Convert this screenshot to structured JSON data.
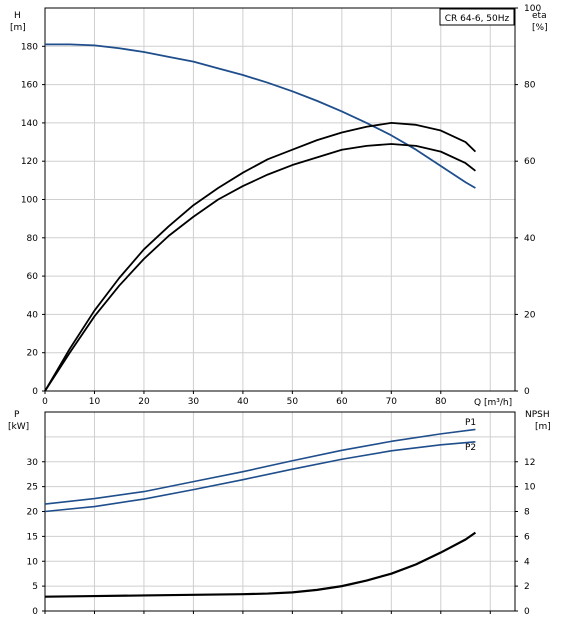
{
  "chart_data": [
    {
      "type": "line",
      "title": "CR 64-6, 50Hz",
      "xlabel": "Q [m³/h]",
      "ylabel_left_unit": "H",
      "ylabel_left_bracket": "[m]",
      "ylabel_right_unit": "eta",
      "ylabel_right_bracket": "[%]",
      "xlim": [
        0,
        95
      ],
      "xticks": [
        "0",
        "10",
        "20",
        "30",
        "40",
        "50",
        "60",
        "70",
        "80"
      ],
      "ylim_left": [
        0,
        200
      ],
      "yticks_left": [
        "0",
        "20",
        "40",
        "60",
        "80",
        "100",
        "120",
        "140",
        "160",
        "180"
      ],
      "ylim_right": [
        0,
        100
      ],
      "yticks_right": [
        "0",
        "20",
        "40",
        "60",
        "80",
        "100"
      ],
      "grid": true,
      "series": [
        {
          "axis": "left",
          "color": "#1f4e8c",
          "x": [
            0,
            5,
            10,
            15,
            20,
            25,
            30,
            35,
            40,
            45,
            50,
            55,
            60,
            65,
            70,
            75,
            80,
            85,
            87
          ],
          "y": [
            181,
            181,
            180.5,
            179,
            177,
            174.5,
            172,
            168.5,
            165,
            161,
            156.5,
            151.5,
            146,
            140,
            133.5,
            126,
            117.5,
            109,
            106
          ]
        },
        {
          "axis": "right",
          "color": "#000000",
          "x": [
            0,
            5,
            10,
            15,
            20,
            25,
            30,
            35,
            40,
            45,
            50,
            55,
            60,
            65,
            70,
            75,
            80,
            85,
            87
          ],
          "y": [
            0,
            11,
            21,
            29.5,
            37,
            43,
            48.5,
            53,
            57,
            60.5,
            63,
            65.5,
            67.5,
            69,
            70,
            69.5,
            68,
            65,
            62.5
          ]
        },
        {
          "axis": "right",
          "color": "#000000",
          "x": [
            0,
            5,
            10,
            15,
            20,
            25,
            30,
            35,
            40,
            45,
            50,
            55,
            60,
            65,
            70,
            75,
            80,
            85,
            87
          ],
          "y": [
            0,
            10,
            19.5,
            27.5,
            34.5,
            40.5,
            45.5,
            50,
            53.5,
            56.5,
            59,
            61,
            63,
            64,
            64.5,
            64,
            62.5,
            59.5,
            57.5
          ]
        }
      ]
    },
    {
      "type": "line",
      "xlim": [
        0,
        95
      ],
      "ylabel_left_unit": "P",
      "ylabel_left_bracket": "[kW]",
      "ylabel_right_unit": "NPSH",
      "ylabel_right_bracket": "[m]",
      "ylim_left": [
        0,
        40
      ],
      "yticks_left": [
        "0",
        "5",
        "10",
        "15",
        "20",
        "25",
        "30"
      ],
      "ylim_right": [
        0,
        16
      ],
      "yticks_right": [
        "0",
        "2",
        "4",
        "6",
        "8",
        "10",
        "12"
      ],
      "grid": true,
      "series": [
        {
          "name": "P1",
          "axis": "left",
          "color": "#1f4e8c",
          "x": [
            0,
            10,
            20,
            30,
            40,
            50,
            60,
            70,
            80,
            87
          ],
          "y": [
            21.5,
            22.6,
            24,
            26,
            28,
            30.2,
            32.3,
            34.1,
            35.6,
            36.5
          ]
        },
        {
          "name": "P2",
          "axis": "left",
          "color": "#1f4e8c",
          "x": [
            0,
            10,
            20,
            30,
            40,
            50,
            60,
            70,
            80,
            87
          ],
          "y": [
            20,
            21,
            22.5,
            24.4,
            26.4,
            28.5,
            30.5,
            32.2,
            33.4,
            34
          ]
        },
        {
          "name": "NPSH",
          "axis": "right",
          "color": "#000000",
          "x": [
            0,
            10,
            20,
            30,
            40,
            45,
            50,
            55,
            60,
            65,
            70,
            75,
            80,
            85,
            87
          ],
          "y": [
            1.15,
            1.2,
            1.25,
            1.3,
            1.35,
            1.4,
            1.5,
            1.7,
            2.0,
            2.45,
            3.0,
            3.75,
            4.7,
            5.75,
            6.3
          ]
        }
      ]
    }
  ]
}
